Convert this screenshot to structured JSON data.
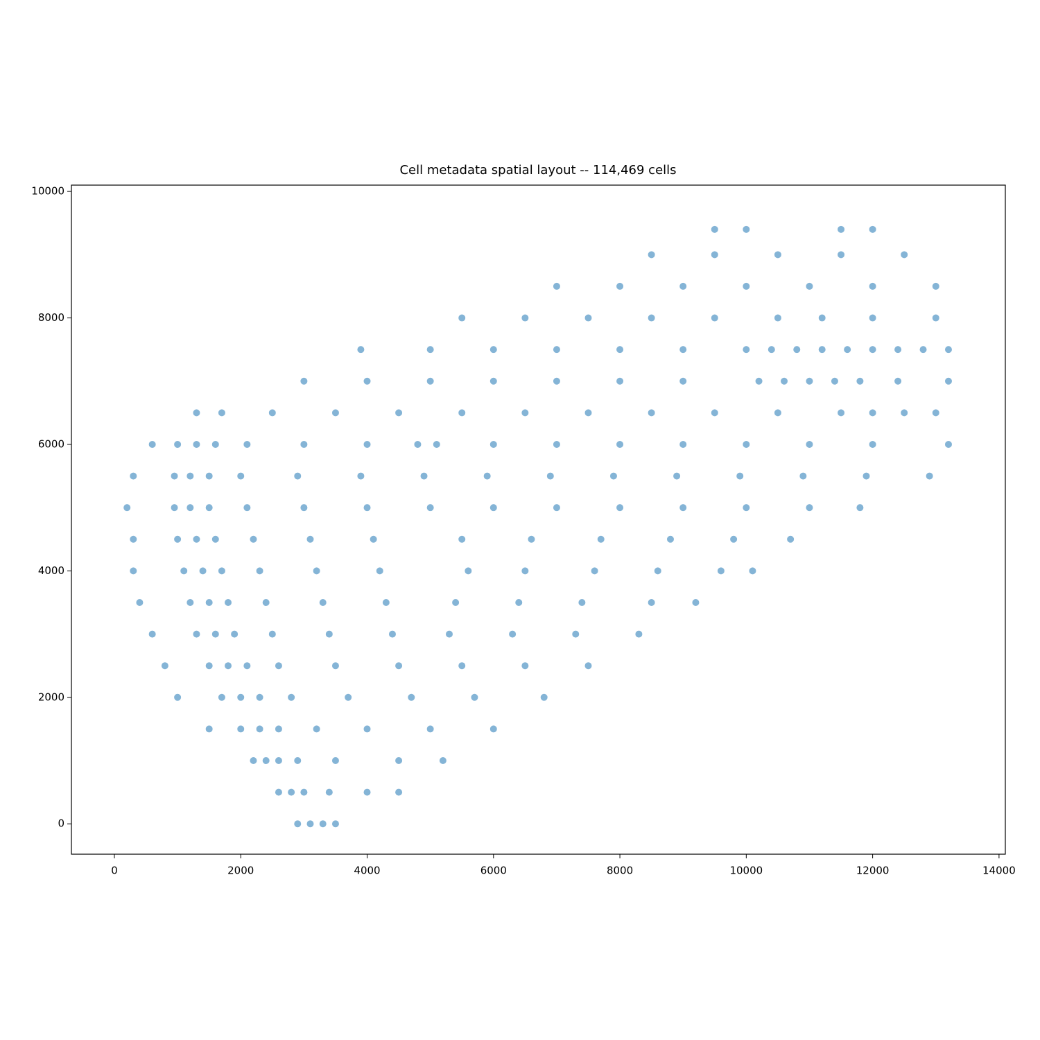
{
  "chart_data": {
    "type": "scatter",
    "title": "Cell metadata spatial layout -- 114,469 cells",
    "color": "#1f77b4",
    "xlim": [
      -680,
      14100
    ],
    "ylim": [
      -480,
      10100
    ],
    "xticks": [
      0,
      2000,
      4000,
      6000,
      8000,
      10000,
      12000,
      14000
    ],
    "yticks": [
      0,
      2000,
      4000,
      6000,
      8000,
      10000
    ],
    "grid": false,
    "x": [
      2900,
      3100,
      3300,
      3500,
      2600,
      2800,
      3000,
      3400,
      4000,
      4500,
      2200,
      2400,
      2600,
      2900,
      3500,
      4500,
      5200,
      1500,
      2000,
      2300,
      2600,
      3200,
      4000,
      5000,
      6000,
      1000,
      1700,
      2000,
      2300,
      2800,
      3700,
      4700,
      5700,
      6800,
      800,
      1500,
      1800,
      2100,
      2600,
      3500,
      4500,
      5500,
      6500,
      7500,
      600,
      1300,
      1600,
      1900,
      2500,
      3400,
      4400,
      5300,
      6300,
      7300,
      8300,
      400,
      1200,
      1500,
      1800,
      2400,
      3300,
      4300,
      5400,
      6400,
      7400,
      8500,
      9200,
      300,
      1100,
      1400,
      1700,
      2300,
      3200,
      4200,
      5600,
      6500,
      7600,
      8600,
      9600,
      10100,
      300,
      1000,
      1300,
      1600,
      2200,
      3100,
      4100,
      5500,
      6600,
      7700,
      8800,
      9800,
      10700,
      200,
      950,
      1200,
      1500,
      2100,
      3000,
      4000,
      5000,
      6000,
      7000,
      8000,
      9000,
      10000,
      11000,
      11800,
      300,
      950,
      1200,
      1500,
      2000,
      2900,
      3900,
      4900,
      5900,
      6900,
      7900,
      8900,
      9900,
      10900,
      11900,
      12900,
      600,
      1000,
      1300,
      1600,
      2100,
      3000,
      4000,
      4800,
      5100,
      6000,
      7000,
      8000,
      9000,
      10000,
      11000,
      12000,
      13200,
      1300,
      1700,
      2500,
      3500,
      4500,
      5500,
      6500,
      7500,
      8500,
      9500,
      10500,
      11500,
      12000,
      12500,
      13000,
      3000,
      4000,
      5000,
      6000,
      7000,
      8000,
      9000,
      10200,
      10600,
      11000,
      11400,
      11800,
      12400,
      13200,
      3900,
      5000,
      6000,
      7000,
      8000,
      9000,
      10000,
      10400,
      10800,
      11200,
      11600,
      12000,
      12400,
      12800,
      13200,
      5500,
      6500,
      7500,
      8500,
      9500,
      10500,
      11200,
      12000,
      13000,
      7000,
      8000,
      9000,
      10000,
      11000,
      12000,
      13000,
      8500,
      9500,
      10500,
      11500,
      12500,
      9500,
      10000,
      11500,
      12000
    ],
    "values": [
      0,
      0,
      0,
      0,
      500,
      500,
      500,
      500,
      500,
      500,
      1000,
      1000,
      1000,
      1000,
      1000,
      1000,
      1000,
      1500,
      1500,
      1500,
      1500,
      1500,
      1500,
      1500,
      1500,
      2000,
      2000,
      2000,
      2000,
      2000,
      2000,
      2000,
      2000,
      2000,
      2500,
      2500,
      2500,
      2500,
      2500,
      2500,
      2500,
      2500,
      2500,
      2500,
      3000,
      3000,
      3000,
      3000,
      3000,
      3000,
      3000,
      3000,
      3000,
      3000,
      3000,
      3500,
      3500,
      3500,
      3500,
      3500,
      3500,
      3500,
      3500,
      3500,
      3500,
      3500,
      3500,
      4000,
      4000,
      4000,
      4000,
      4000,
      4000,
      4000,
      4000,
      4000,
      4000,
      4000,
      4000,
      4000,
      4500,
      4500,
      4500,
      4500,
      4500,
      4500,
      4500,
      4500,
      4500,
      4500,
      4500,
      4500,
      4500,
      5000,
      5000,
      5000,
      5000,
      5000,
      5000,
      5000,
      5000,
      5000,
      5000,
      5000,
      5000,
      5000,
      5000,
      5000,
      5500,
      5500,
      5500,
      5500,
      5500,
      5500,
      5500,
      5500,
      5500,
      5500,
      5500,
      5500,
      5500,
      5500,
      5500,
      5500,
      6000,
      6000,
      6000,
      6000,
      6000,
      6000,
      6000,
      6000,
      6000,
      6000,
      6000,
      6000,
      6000,
      6000,
      6000,
      6000,
      6000,
      6500,
      6500,
      6500,
      6500,
      6500,
      6500,
      6500,
      6500,
      6500,
      6500,
      6500,
      6500,
      6500,
      6500,
      6500,
      7000,
      7000,
      7000,
      7000,
      7000,
      7000,
      7000,
      7000,
      7000,
      7000,
      7000,
      7000,
      7000,
      7000,
      7500,
      7500,
      7500,
      7500,
      7500,
      7500,
      7500,
      7500,
      7500,
      7500,
      7500,
      7500,
      7500,
      7500,
      7500,
      8000,
      8000,
      8000,
      8000,
      8000,
      8000,
      8000,
      8000,
      8000,
      8500,
      8500,
      8500,
      8500,
      8500,
      8500,
      8500,
      9000,
      9000,
      9000,
      9000,
      9000,
      9400,
      9400,
      9400,
      9400
    ]
  }
}
